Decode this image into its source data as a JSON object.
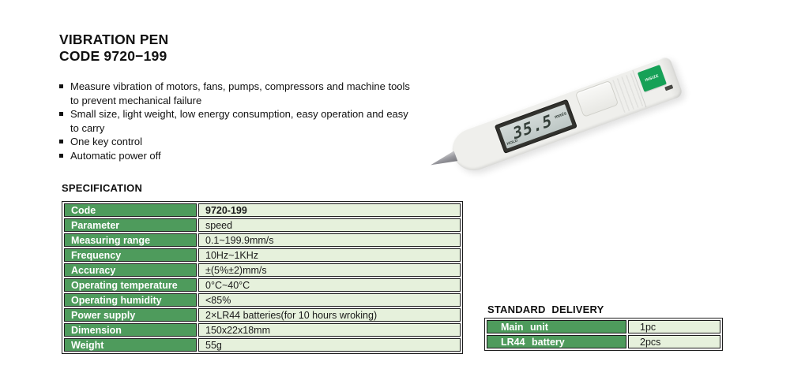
{
  "header": {
    "title_line1": "VIBRATION PEN",
    "title_line2": "CODE 9720−199"
  },
  "features": [
    "Measure vibration of motors, fans, pumps, compressors and machine tools to prevent mechanical failure",
    "Small size, light weight, low energy consumption, easy operation and easy to carry",
    "One key control",
    "Automatic power off"
  ],
  "specification": {
    "heading": "SPECIFICATION",
    "rows": [
      {
        "label": "Code",
        "value": "9720-199"
      },
      {
        "label": "Parameter",
        "value": "speed"
      },
      {
        "label": "Measuring range",
        "value": "0.1~199.9mm/s"
      },
      {
        "label": "Frequency",
        "value": "10Hz~1KHz"
      },
      {
        "label": "Accuracy",
        "value": "±(5%±2)mm/s"
      },
      {
        "label": "Operating temperature",
        "value": "0°C~40°C"
      },
      {
        "label": "Operating humidity",
        "value": "<85%"
      },
      {
        "label": "Power supply",
        "value": "2×LR44 batteries(for 10 hours wroking)"
      },
      {
        "label": "Dimension",
        "value": "150x22x18mm"
      },
      {
        "label": "Weight",
        "value": "55g"
      }
    ]
  },
  "standard_delivery": {
    "heading": "STANDARD DELIVERY",
    "rows": [
      {
        "label": "Main unit",
        "value": "1pc"
      },
      {
        "label": "LR44 battery",
        "value": "2pcs"
      }
    ]
  },
  "device": {
    "brand": "INSIZE",
    "lcd_value": "35.5",
    "lcd_units": "mm/s",
    "lcd_hold": "HOLD"
  },
  "colors": {
    "table_header_green": "#4e9b5c",
    "table_cell_green": "#e6f1dc",
    "table_border": "#1c1c1c",
    "brand_green": "#16a157",
    "lcd_frame": "#33332f",
    "lcd_screen": "#c8d1cf"
  }
}
